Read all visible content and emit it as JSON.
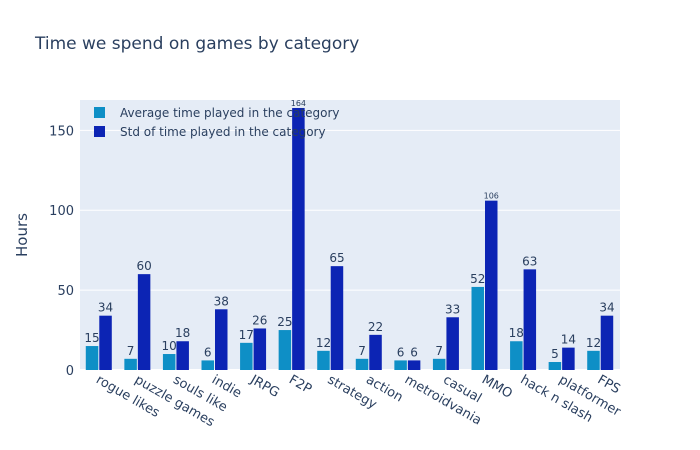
{
  "chart_data": {
    "type": "bar",
    "title": "Time we spend on games by category",
    "xlabel": "",
    "ylabel": "Hours",
    "categories": [
      "rogue likes",
      "puzzle games",
      "souls like",
      "indie",
      "JRPG",
      "F2P",
      "strategy",
      "action",
      "metroidvania",
      "casual",
      "MMO",
      "hack n slash",
      "platformer",
      "FPS"
    ],
    "series": [
      {
        "name": "Average time played in the category",
        "color": "#0e8fc6",
        "values": [
          15,
          7,
          10,
          6,
          17,
          25,
          12,
          7,
          6,
          7,
          52,
          18,
          5,
          12
        ]
      },
      {
        "name": "Std of time played in the category",
        "color": "#0c24b4",
        "values": [
          34,
          60,
          18,
          38,
          26,
          164,
          65,
          22,
          6,
          33,
          106,
          63,
          14,
          34
        ]
      }
    ],
    "ylim": [
      0,
      169
    ],
    "yticks": [
      0,
      50,
      100,
      150
    ],
    "grid": true,
    "legend_position": "top-left",
    "plot_background": "#e5ecf6"
  }
}
